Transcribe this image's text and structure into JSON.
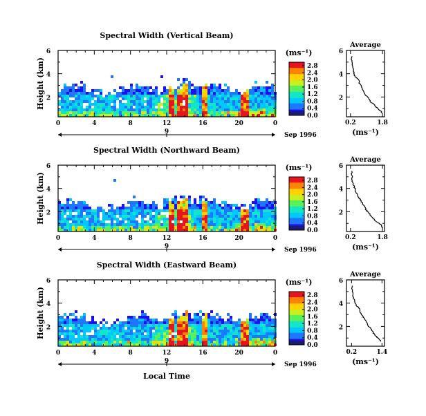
{
  "chart_data": [
    {
      "type": "heatmap",
      "title": "Spectral Width (Vertical Beam)",
      "ylabel": "Height (km)",
      "xticks": [
        "0",
        "4",
        "8",
        "12",
        "16",
        "20",
        "0"
      ],
      "yticks": [
        "2",
        "4",
        "6"
      ],
      "ylim": [
        0.3,
        6
      ],
      "xlim": [
        0,
        24
      ],
      "date_label": "Sep 1996",
      "day_marker": "9",
      "colorbar": {
        "unit": "(ms⁻¹)",
        "ticks": [
          "0.0",
          "0.4",
          "0.8",
          "1.2",
          "1.6",
          "2.0",
          "2.4",
          "2.8"
        ],
        "range": [
          0,
          3.0
        ]
      },
      "average_profile": {
        "title": "Average",
        "unit": "(ms⁻¹)",
        "xticks": [
          "0.2",
          "1.8"
        ],
        "yticks": [
          "2",
          "4",
          "6"
        ],
        "xlim": [
          0.0,
          1.9
        ],
        "ylim": [
          0.3,
          6
        ],
        "points": [
          [
            0.25,
            5.5
          ],
          [
            0.28,
            5.0
          ],
          [
            0.3,
            4.6
          ],
          [
            0.35,
            4.2
          ],
          [
            0.38,
            3.9
          ],
          [
            0.45,
            3.7
          ],
          [
            0.6,
            3.5
          ],
          [
            0.65,
            3.2
          ],
          [
            0.75,
            3.0
          ],
          [
            0.8,
            2.7
          ],
          [
            0.85,
            2.4
          ],
          [
            0.95,
            2.2
          ],
          [
            1.1,
            1.9
          ],
          [
            1.2,
            1.6
          ],
          [
            1.4,
            1.3
          ],
          [
            1.55,
            1.0
          ],
          [
            1.7,
            0.8
          ],
          [
            1.8,
            0.6
          ]
        ]
      }
    },
    {
      "type": "heatmap",
      "title": "Spectral Width (Northward Beam)",
      "ylabel": "Height (km)",
      "xticks": [
        "0",
        "4",
        "8",
        "12",
        "16",
        "20",
        "0"
      ],
      "yticks": [
        "2",
        "4",
        "6"
      ],
      "ylim": [
        0.3,
        6
      ],
      "xlim": [
        0,
        24
      ],
      "date_label": "Sep 1996",
      "day_marker": "9",
      "colorbar": {
        "unit": "(ms⁻¹)",
        "ticks": [
          "0.0",
          "0.4",
          "0.8",
          "1.2",
          "1.6",
          "2.0",
          "2.4",
          "2.8"
        ],
        "range": [
          0,
          3.0
        ]
      },
      "average_profile": {
        "title": "Average",
        "unit": "(ms⁻¹)",
        "xticks": [
          "0.2",
          "1.8"
        ],
        "yticks": [
          "2",
          "4",
          "6"
        ],
        "xlim": [
          0.0,
          1.9
        ],
        "ylim": [
          0.3,
          6
        ],
        "points": [
          [
            0.25,
            5.5
          ],
          [
            0.28,
            5.0
          ],
          [
            0.3,
            4.6
          ],
          [
            0.35,
            4.3
          ],
          [
            0.42,
            4.0
          ],
          [
            0.5,
            3.6
          ],
          [
            0.6,
            3.3
          ],
          [
            0.7,
            3.0
          ],
          [
            0.8,
            2.7
          ],
          [
            0.9,
            2.4
          ],
          [
            1.0,
            2.1
          ],
          [
            1.15,
            1.8
          ],
          [
            1.3,
            1.5
          ],
          [
            1.45,
            1.2
          ],
          [
            1.65,
            1.0
          ],
          [
            1.75,
            0.8
          ],
          [
            1.8,
            0.6
          ]
        ]
      }
    },
    {
      "type": "heatmap",
      "title": "Spectral Width (Eastward Beam)",
      "ylabel": "Height (km)",
      "xticks": [
        "0",
        "4",
        "8",
        "12",
        "16",
        "20",
        "0"
      ],
      "yticks": [
        "2",
        "4",
        "6"
      ],
      "ylim": [
        0.3,
        6
      ],
      "xlim": [
        0,
        24
      ],
      "date_label": "Sep 1996",
      "day_marker": "9",
      "colorbar": {
        "unit": "(ms⁻¹)",
        "ticks": [
          "0.0",
          "0.4",
          "0.8",
          "1.2",
          "1.6",
          "2.0",
          "2.4",
          "2.8"
        ],
        "range": [
          0,
          3.0
        ]
      },
      "average_profile": {
        "title": "Average",
        "unit": "(ms⁻¹)",
        "xticks": [
          "0.2",
          "1.4"
        ],
        "yticks": [
          "2",
          "4",
          "6"
        ],
        "xlim": [
          0.0,
          1.5
        ],
        "ylim": [
          0.3,
          6
        ],
        "points": [
          [
            0.22,
            5.5
          ],
          [
            0.25,
            5.0
          ],
          [
            0.28,
            4.5
          ],
          [
            0.32,
            4.1
          ],
          [
            0.4,
            3.8
          ],
          [
            0.5,
            3.5
          ],
          [
            0.58,
            3.1
          ],
          [
            0.65,
            2.8
          ],
          [
            0.75,
            2.5
          ],
          [
            0.85,
            2.1
          ],
          [
            0.95,
            1.8
          ],
          [
            1.05,
            1.5
          ],
          [
            1.15,
            1.2
          ],
          [
            1.25,
            1.0
          ],
          [
            1.35,
            0.7
          ]
        ]
      }
    }
  ],
  "x_axis_label": "Local Time",
  "palette": [
    "#1a0ff5",
    "#1e78ff",
    "#00c8ff",
    "#12e6c8",
    "#5af05a",
    "#c8f01e",
    "#ffd200",
    "#ff8200",
    "#e6141e"
  ]
}
